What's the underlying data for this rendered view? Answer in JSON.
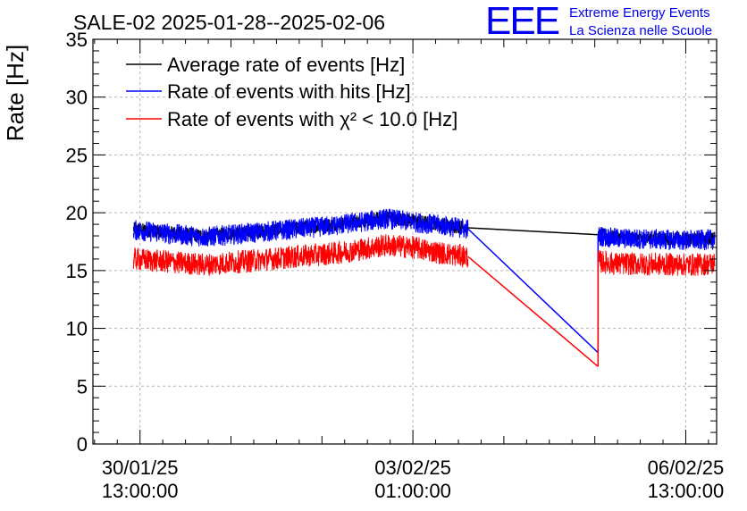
{
  "chart_data": {
    "type": "line",
    "title": "SALE-02 2025-01-28--2025-02-06",
    "xlabel": "",
    "ylabel": "Rate [Hz]",
    "ylim": [
      0,
      35
    ],
    "yticks": [
      0,
      5,
      10,
      15,
      20,
      25,
      30,
      35
    ],
    "xlim_hours": [
      -14.5,
      177.5
    ],
    "x_units": "hours since 30/01/25 13:00:00",
    "x_tick_labels": [
      {
        "hours": 0,
        "date": "30/01/25",
        "time": "13:00:00"
      },
      {
        "hours": 84,
        "date": "03/02/25",
        "time": "01:00:00"
      },
      {
        "hours": 168,
        "date": "06/02/25",
        "time": "13:00:00"
      }
    ],
    "x_minor_ticks_hours": [
      0,
      28,
      56,
      84,
      112,
      140,
      168
    ],
    "grid": true,
    "legend_position": "top-left",
    "series": [
      {
        "name": "Average rate of events [Hz]",
        "legend_label": "Average rate of events [Hz]",
        "color": "#000000",
        "baseline_points": [
          [
            -2,
            18.6
          ],
          [
            20,
            18.0
          ],
          [
            40,
            18.5
          ],
          [
            60,
            19.0
          ],
          [
            76,
            19.6
          ],
          [
            84,
            19.3
          ],
          [
            93,
            19.0
          ],
          [
            101,
            18.7
          ],
          [
            141,
            18.1
          ],
          [
            146,
            17.9
          ],
          [
            170,
            17.7
          ],
          [
            177,
            17.8
          ]
        ],
        "noise_amplitude": 0.6,
        "segments_hours": [
          [
            -2,
            101
          ],
          [
            141,
            177
          ]
        ],
        "gap_connect": [
          [
            101,
            18.7
          ],
          [
            141,
            18.1
          ]
        ]
      },
      {
        "name": "Rate of events with hits [Hz]",
        "legend_label": "Rate of events with hits [Hz]",
        "color": "#0000ff",
        "baseline_points": [
          [
            -2,
            18.5
          ],
          [
            20,
            17.9
          ],
          [
            40,
            18.4
          ],
          [
            60,
            18.9
          ],
          [
            76,
            19.5
          ],
          [
            84,
            19.2
          ],
          [
            93,
            18.9
          ],
          [
            101,
            18.6
          ],
          [
            141,
            18.0
          ],
          [
            146,
            17.8
          ],
          [
            170,
            17.6
          ],
          [
            177,
            17.7
          ]
        ],
        "noise_amplitude": 0.9,
        "segments_hours": [
          [
            -2,
            101
          ],
          [
            141,
            177
          ]
        ],
        "gap_connect": [
          [
            101,
            18.6
          ],
          [
            141,
            7.9
          ]
        ]
      },
      {
        "name": "Rate of events with chi2 < 10.0 [Hz]",
        "legend_label": "Rate of events with χ² < 10.0 [Hz]",
        "color": "#ff0000",
        "baseline_points": [
          [
            -2,
            16.0
          ],
          [
            20,
            15.5
          ],
          [
            40,
            16.0
          ],
          [
            60,
            16.5
          ],
          [
            76,
            17.2
          ],
          [
            84,
            17.0
          ],
          [
            93,
            16.5
          ],
          [
            101,
            16.2
          ],
          [
            141,
            15.8
          ],
          [
            146,
            15.6
          ],
          [
            170,
            15.5
          ],
          [
            177,
            15.6
          ]
        ],
        "noise_amplitude": 1.0,
        "segments_hours": [
          [
            -2,
            101
          ],
          [
            141,
            177
          ]
        ],
        "gap_connect": [
          [
            101,
            16.2
          ],
          [
            141,
            6.7
          ]
        ]
      }
    ]
  },
  "logo": {
    "mark": "EEE",
    "line1": "Extreme Energy Events",
    "line2": "La Scienza nelle Scuole",
    "color": "#0000ee"
  }
}
